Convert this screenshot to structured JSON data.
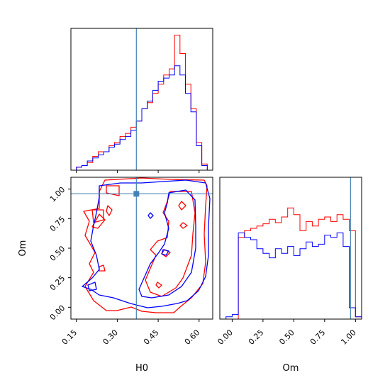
{
  "chart_data": {
    "type": "corner",
    "parameters": [
      "H0",
      "Om"
    ],
    "truth": {
      "H0": 0.37,
      "Om": 0.96
    },
    "colors": {
      "series_a": "#ff0000",
      "series_b": "#0000ff",
      "truth": "#4682b4"
    },
    "hist_h0": {
      "xlim": [
        0.13,
        0.65
      ],
      "ticks": [
        "0.15",
        "0.30",
        "0.45",
        "0.60"
      ],
      "tick_values": [
        0.15,
        0.3,
        0.45,
        0.6
      ],
      "bin_edges": [
        0.15,
        0.17,
        0.19,
        0.21,
        0.23,
        0.25,
        0.27,
        0.29,
        0.31,
        0.33,
        0.35,
        0.37,
        0.39,
        0.41,
        0.43,
        0.45,
        0.47,
        0.49,
        0.51,
        0.53,
        0.55,
        0.57,
        0.59,
        0.61,
        0.63
      ],
      "red_counts": [
        2,
        3,
        5,
        9,
        12,
        12,
        16,
        18,
        22,
        24,
        28,
        32,
        40,
        44,
        50,
        56,
        62,
        66,
        88,
        76,
        56,
        40,
        18,
        4
      ],
      "blue_counts": [
        2,
        3,
        6,
        8,
        10,
        12,
        15,
        17,
        20,
        22,
        26,
        32,
        40,
        45,
        52,
        58,
        60,
        62,
        68,
        62,
        50,
        38,
        16,
        3
      ]
    },
    "hist_om": {
      "xlim": [
        -0.1,
        1.05
      ],
      "ticks": [
        "0.00",
        "0.25",
        "0.50",
        "0.75",
        "1.00"
      ],
      "tick_values": [
        0.0,
        0.25,
        0.5,
        0.75,
        1.0
      ],
      "bin_edges": [
        -0.1,
        -0.05,
        0.0,
        0.05,
        0.1,
        0.15,
        0.2,
        0.25,
        0.3,
        0.35,
        0.4,
        0.45,
        0.5,
        0.55,
        0.6,
        0.65,
        0.7,
        0.75,
        0.8,
        0.85,
        0.9,
        0.95,
        1.0,
        1.05
      ],
      "red_counts": [
        0,
        0,
        0,
        72,
        78,
        80,
        82,
        84,
        88,
        85,
        90,
        98,
        92,
        78,
        86,
        82,
        88,
        90,
        86,
        92,
        88,
        78,
        2
      ],
      "blue_counts": [
        0,
        2,
        4,
        76,
        72,
        70,
        62,
        58,
        54,
        62,
        58,
        64,
        56,
        62,
        68,
        64,
        66,
        74,
        72,
        76,
        64,
        10,
        2
      ]
    },
    "scatter_2d": {
      "xlim": [
        0.13,
        0.65
      ],
      "ylim": [
        -0.1,
        1.1
      ],
      "x_ticks": [
        "0.15",
        "0.30",
        "0.45",
        "0.60"
      ],
      "x_tick_values": [
        0.15,
        0.3,
        0.45,
        0.6
      ],
      "y_ticks": [
        "0.00",
        "0.25",
        "0.50",
        "0.75",
        "1.00"
      ],
      "y_tick_values": [
        0.0,
        0.25,
        0.5,
        0.75,
        1.0
      ],
      "xlabel": "H0",
      "ylabel": "Om"
    },
    "om_xlabel": "Om"
  }
}
